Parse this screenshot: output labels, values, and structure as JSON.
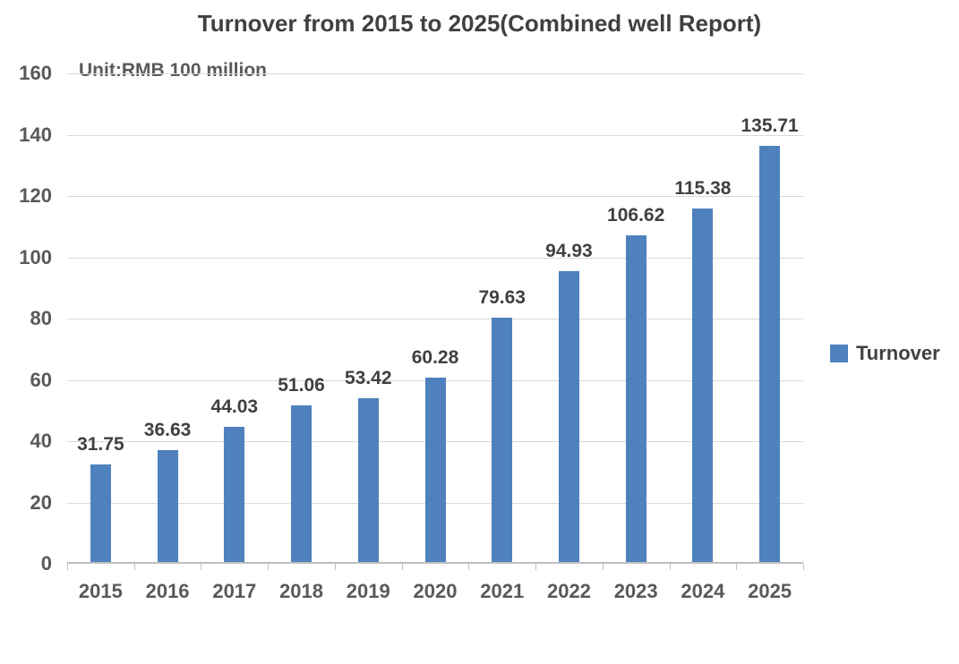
{
  "title": "Turnover from 2015 to 2025(Combined well Report)",
  "unit_label": "Unit:RMB 100 million",
  "legend": {
    "label": "Turnover",
    "swatch_color": "#4e81bd"
  },
  "colors": {
    "bar": "#4e81bd",
    "gridline": "#d9d9d9",
    "axis_line": "#bfbfbf",
    "title_text": "#404040",
    "axis_text": "#595959",
    "value_text": "#404040",
    "background": "#ffffff"
  },
  "chart_data": {
    "type": "bar",
    "title": "Turnover from 2015 to 2025(Combined well Report)",
    "subtitle": "Unit:RMB 100 million",
    "categories": [
      "2015",
      "2016",
      "2017",
      "2018",
      "2019",
      "2020",
      "2021",
      "2022",
      "2023",
      "2024",
      "2025"
    ],
    "series": [
      {
        "name": "Turnover",
        "values": [
          31.75,
          36.63,
          44.03,
          51.06,
          53.42,
          60.28,
          79.63,
          94.93,
          106.62,
          115.38,
          135.71
        ]
      }
    ],
    "value_labels": [
      "31.75",
      "36.63",
      "44.03",
      "51.06",
      "53.42",
      "60.28",
      "79.63",
      "94.93",
      "106.62",
      "115.38",
      "135.71"
    ],
    "xlabel": "",
    "ylabel": "Unit:RMB 100 million",
    "ylim": [
      0,
      160
    ],
    "ytick_interval": 20,
    "ytick_labels": [
      "0",
      "20",
      "40",
      "60",
      "80",
      "100",
      "120",
      "140",
      "160"
    ],
    "grid": true,
    "legend_position": "right"
  }
}
